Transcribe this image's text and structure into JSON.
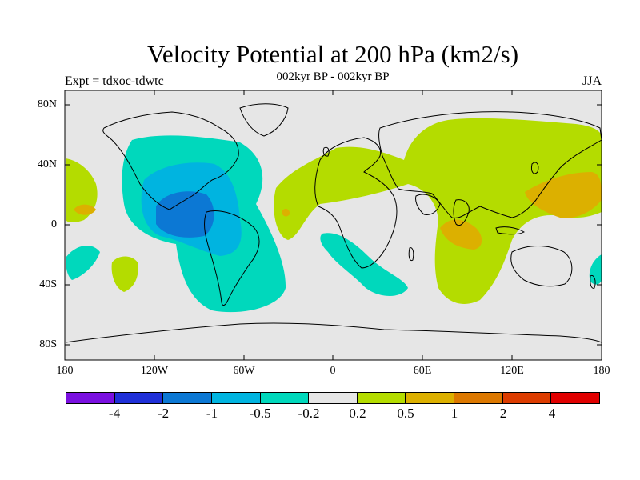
{
  "title": "Velocity Potential at 200 hPa (km2/s)",
  "subtitle": "002kyr BP - 002kyr BP",
  "experiment": "Expt = tdxoc-tdwtc",
  "season": "JJA",
  "lat_labels": [
    "80N",
    "40N",
    "0",
    "40S",
    "80S"
  ],
  "lon_labels": [
    "180",
    "120W",
    "60W",
    "0",
    "60E",
    "120E",
    "180"
  ],
  "colorbar": {
    "colors": [
      "#7a10e0",
      "#2030d8",
      "#0c78d4",
      "#00b4e0",
      "#00d8bc",
      "#e6e6e6",
      "#b4dc00",
      "#dcb000",
      "#dc7800",
      "#dc3c00",
      "#e00000"
    ],
    "labels": [
      "-4",
      "-2",
      "-1",
      "-0.5",
      "-0.2",
      "0.2",
      "0.5",
      "1",
      "2",
      "4"
    ]
  },
  "map": {
    "projection": "cylindrical equidistant",
    "lon_range": [
      -180,
      180
    ],
    "lat_range": [
      -90,
      90
    ],
    "background": "#e6e6e6",
    "coastline_color": "#000000"
  }
}
